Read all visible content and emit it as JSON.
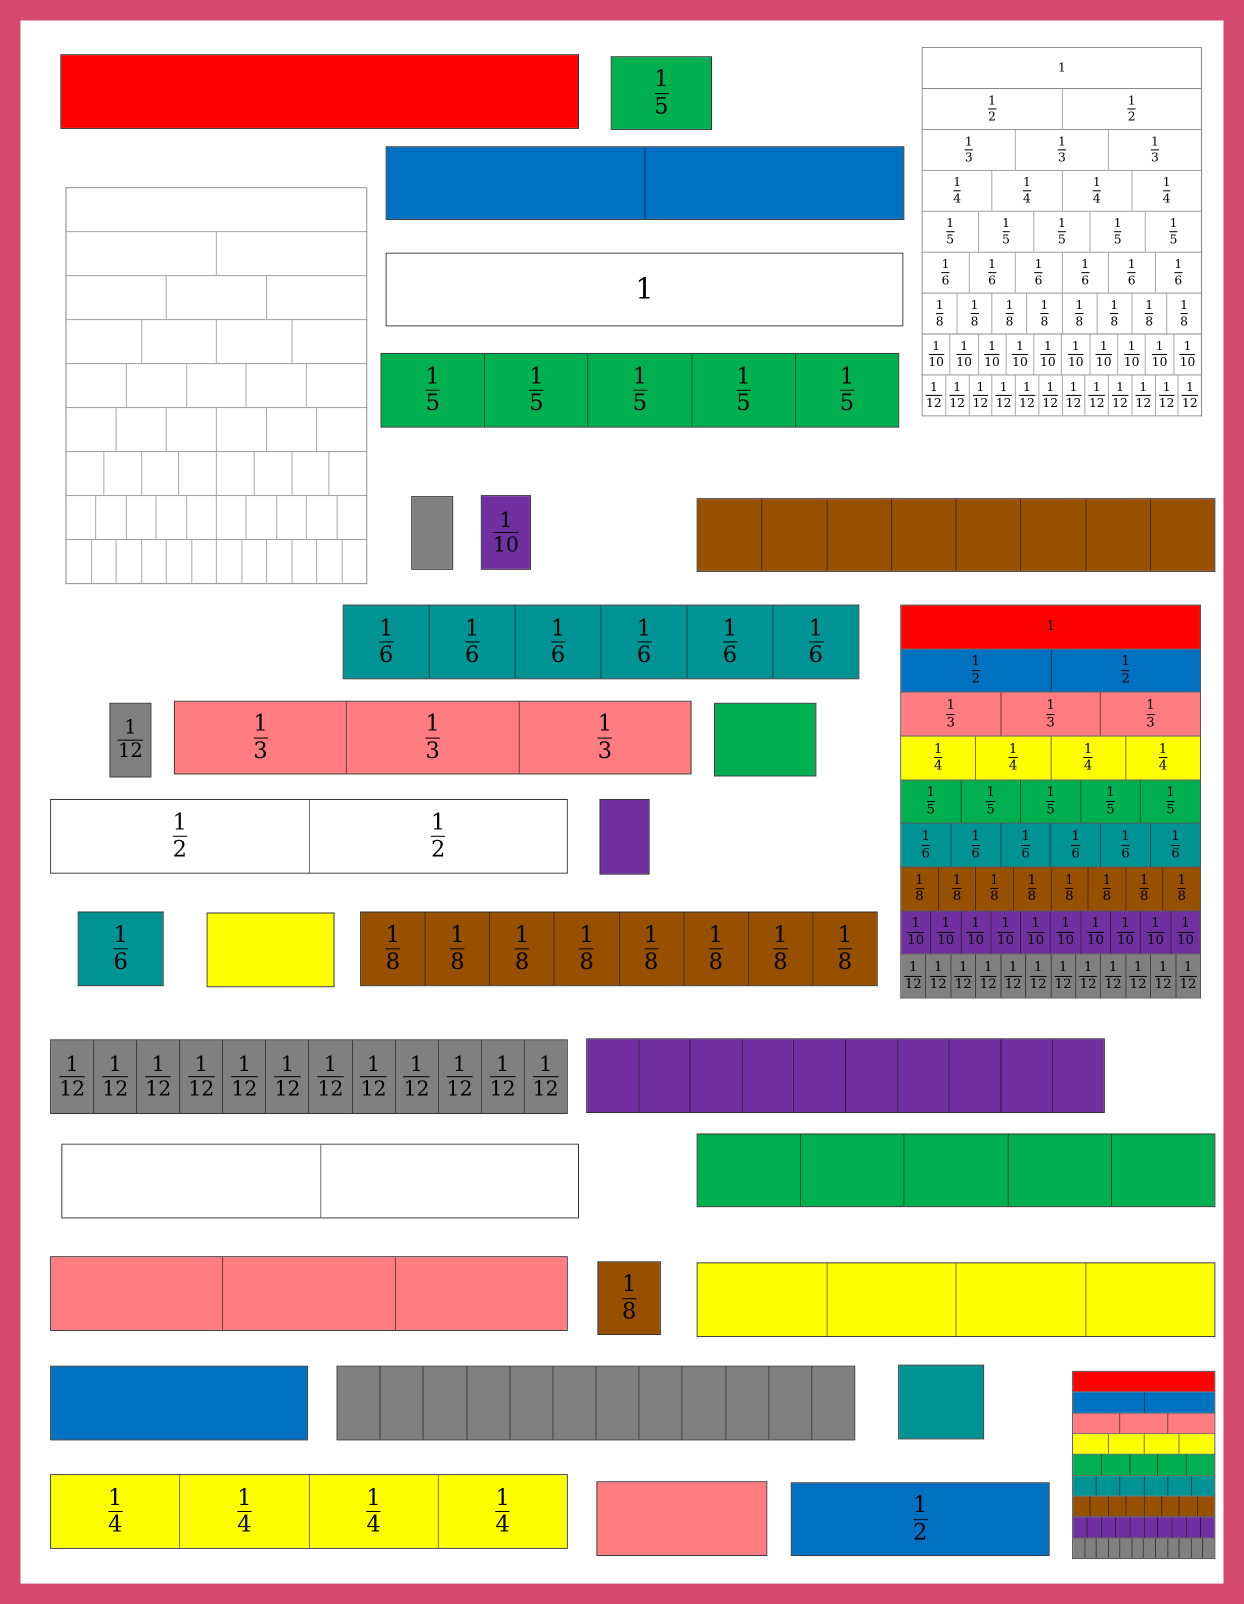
{
  "colors": {
    "frame": "#D5486F",
    "red": "#FF0000",
    "blue": "#0070C0",
    "salmon": "#FF7C80",
    "yellow": "#FFFF00",
    "green": "#00B050",
    "teal": "#009393",
    "brown": "#974F00",
    "purple": "#7030A0",
    "gray": "#808080",
    "white": "#FFFFFF"
  },
  "bars": [
    {
      "color": "red",
      "parts": 1,
      "label": null
    },
    {
      "color": "green",
      "parts": 1,
      "label": {
        "num": "1",
        "den": "5"
      }
    },
    {
      "color": "blue",
      "parts": 2,
      "label": null
    },
    {
      "color": "white",
      "parts": 1,
      "label": {
        "num": "1"
      }
    },
    {
      "color": "green",
      "parts": 5,
      "label": {
        "num": "1",
        "den": "5"
      }
    },
    {
      "color": "gray",
      "parts": 1,
      "label": null
    },
    {
      "color": "purple",
      "parts": 1,
      "label": {
        "num": "1",
        "den": "10"
      }
    },
    {
      "color": "brown",
      "parts": 8,
      "label": null
    },
    {
      "color": "teal",
      "parts": 6,
      "label": {
        "num": "1",
        "den": "6"
      }
    },
    {
      "color": "gray",
      "parts": 1,
      "label": {
        "num": "1",
        "den": "12"
      }
    },
    {
      "color": "salmon",
      "parts": 3,
      "label": {
        "num": "1",
        "den": "3"
      }
    },
    {
      "color": "green",
      "parts": 1,
      "label": null
    },
    {
      "color": "white",
      "parts": 2,
      "label": {
        "num": "1",
        "den": "2"
      }
    },
    {
      "color": "purple",
      "parts": 1,
      "label": null
    },
    {
      "color": "teal",
      "parts": 1,
      "label": {
        "num": "1",
        "den": "6"
      }
    },
    {
      "color": "yellow",
      "parts": 1,
      "label": null
    },
    {
      "color": "brown",
      "parts": 8,
      "label": {
        "num": "1",
        "den": "8"
      }
    },
    {
      "color": "gray",
      "parts": 12,
      "label": {
        "num": "1",
        "den": "12"
      }
    },
    {
      "color": "purple",
      "parts": 10,
      "label": null
    },
    {
      "color": "white",
      "parts": 2,
      "label": null
    },
    {
      "color": "green",
      "parts": 5,
      "label": null
    },
    {
      "color": "salmon",
      "parts": 3,
      "label": null
    },
    {
      "color": "brown",
      "parts": 1,
      "label": {
        "num": "1",
        "den": "8"
      }
    },
    {
      "color": "yellow",
      "parts": 4,
      "label": null
    },
    {
      "color": "blue",
      "parts": 1,
      "label": null
    },
    {
      "color": "gray",
      "parts": 12,
      "label": null
    },
    {
      "color": "teal",
      "parts": 1,
      "label": null
    },
    {
      "color": "yellow",
      "parts": 4,
      "label": {
        "num": "1",
        "den": "4"
      }
    },
    {
      "color": "salmon",
      "parts": 1,
      "label": null
    },
    {
      "color": "blue",
      "parts": 1,
      "label": {
        "num": "1",
        "den": "2"
      }
    }
  ],
  "walls": [
    {
      "name": "labeled-white-fraction-wall",
      "rows": [
        {
          "color": "white",
          "parts": 1,
          "label": {
            "num": "1"
          }
        },
        {
          "color": "white",
          "parts": 2,
          "label": {
            "num": "1",
            "den": "2"
          }
        },
        {
          "color": "white",
          "parts": 3,
          "label": {
            "num": "1",
            "den": "3"
          }
        },
        {
          "color": "white",
          "parts": 4,
          "label": {
            "num": "1",
            "den": "4"
          }
        },
        {
          "color": "white",
          "parts": 5,
          "label": {
            "num": "1",
            "den": "5"
          }
        },
        {
          "color": "white",
          "parts": 6,
          "label": {
            "num": "1",
            "den": "6"
          }
        },
        {
          "color": "white",
          "parts": 8,
          "label": {
            "num": "1",
            "den": "8"
          }
        },
        {
          "color": "white",
          "parts": 10,
          "label": {
            "num": "1",
            "den": "10"
          }
        },
        {
          "color": "white",
          "parts": 12,
          "label": {
            "num": "1",
            "den": "12"
          }
        }
      ]
    },
    {
      "name": "blank-white-fraction-wall",
      "rows": [
        {
          "color": "white",
          "parts": 1,
          "label": null
        },
        {
          "color": "white",
          "parts": 2,
          "label": null
        },
        {
          "color": "white",
          "parts": 3,
          "label": null
        },
        {
          "color": "white",
          "parts": 4,
          "label": null
        },
        {
          "color": "white",
          "parts": 5,
          "label": null
        },
        {
          "color": "white",
          "parts": 6,
          "label": null
        },
        {
          "color": "white",
          "parts": 8,
          "label": null
        },
        {
          "color": "white",
          "parts": 10,
          "label": null
        },
        {
          "color": "white",
          "parts": 12,
          "label": null
        }
      ]
    },
    {
      "name": "labeled-color-fraction-wall",
      "rows": [
        {
          "color": "red",
          "parts": 1,
          "label": {
            "num": "1"
          }
        },
        {
          "color": "blue",
          "parts": 2,
          "label": {
            "num": "1",
            "den": "2"
          }
        },
        {
          "color": "salmon",
          "parts": 3,
          "label": {
            "num": "1",
            "den": "3"
          }
        },
        {
          "color": "yellow",
          "parts": 4,
          "label": {
            "num": "1",
            "den": "4"
          }
        },
        {
          "color": "green",
          "parts": 5,
          "label": {
            "num": "1",
            "den": "5"
          }
        },
        {
          "color": "teal",
          "parts": 6,
          "label": {
            "num": "1",
            "den": "6"
          }
        },
        {
          "color": "brown",
          "parts": 8,
          "label": {
            "num": "1",
            "den": "8"
          }
        },
        {
          "color": "purple",
          "parts": 10,
          "label": {
            "num": "1",
            "den": "10"
          }
        },
        {
          "color": "gray",
          "parts": 12,
          "label": {
            "num": "1",
            "den": "12"
          }
        }
      ]
    },
    {
      "name": "small-color-fraction-wall",
      "rows": [
        {
          "color": "red",
          "parts": 1,
          "label": null
        },
        {
          "color": "blue",
          "parts": 2,
          "label": null
        },
        {
          "color": "salmon",
          "parts": 3,
          "label": null
        },
        {
          "color": "yellow",
          "parts": 4,
          "label": null
        },
        {
          "color": "green",
          "parts": 5,
          "label": null
        },
        {
          "color": "teal",
          "parts": 6,
          "label": null
        },
        {
          "color": "brown",
          "parts": 8,
          "label": null
        },
        {
          "color": "purple",
          "parts": 10,
          "label": null
        },
        {
          "color": "gray",
          "parts": 12,
          "label": null
        }
      ]
    }
  ]
}
